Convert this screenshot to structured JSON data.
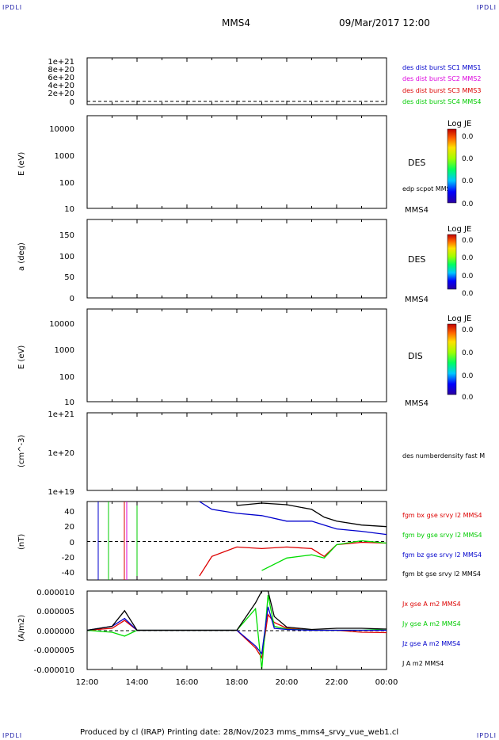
{
  "corner_tl": "IPDLI",
  "corner_tr": "IPDLI",
  "corner_bl": "IPDLI",
  "corner_br": "IPDLI",
  "header": {
    "spacecraft": "MMS4",
    "date": "09/Mar/2017 12:00"
  },
  "footer": "Produced by cl (IRAP)   Printing date: 28/Nov/2023   mms_mms4_srvy_vue_web1.cl",
  "colors": {
    "black": "#000000",
    "red": "#dd0000",
    "green": "#00dd00",
    "blue": "#0000cc",
    "magenta": "#dd00dd"
  },
  "panels": {
    "p1": {
      "ylabel": "",
      "ticks": [
        "1e+21",
        "8e+20",
        "6e+20",
        "4e+20",
        "2e+20",
        "0"
      ],
      "legend": [
        "des dist burst SC1 MMS1",
        "des dist burst SC2 MMS2",
        "des dist burst SC3 MMS3",
        "des dist burst SC4 MMS4"
      ]
    },
    "p2": {
      "ylabel": "E (eV)",
      "ticks": [
        "10000",
        "1000",
        "100",
        "10"
      ],
      "label": "DES",
      "sublabel": "edp scpot MMS4",
      "bottom": "MMS4",
      "cbar_title": "Log JE",
      "cbar_ticks": [
        "0.0",
        "0.0",
        "0.0",
        "0.0"
      ]
    },
    "p3": {
      "ylabel": "a (deg)",
      "ticks": [
        "150",
        "100",
        "50",
        "0"
      ],
      "label": "DES",
      "bottom": "MMS4",
      "cbar_title": "Log JE",
      "cbar_ticks": [
        "0.0",
        "0.0",
        "0.0",
        "0.0"
      ]
    },
    "p4": {
      "ylabel": "E (eV)",
      "ticks": [
        "10000",
        "1000",
        "100",
        "10"
      ],
      "label": "DIS",
      "bottom": "MMS4",
      "cbar_title": "Log JE",
      "cbar_ticks": [
        "0.0",
        "0.0",
        "0.0",
        "0.0"
      ]
    },
    "p5": {
      "ylabel": "(cm^-3)",
      "ticks": [
        "1e+21",
        "1e+20",
        "1e+19"
      ],
      "sublabel": "des numberdensity fast M"
    },
    "p6": {
      "ylabel": "(nT)",
      "ticks": [
        "40",
        "20",
        "0",
        "-20",
        "-40"
      ],
      "legend": [
        "fgm bx gse srvy l2 MMS4",
        "fgm by gse srvy l2 MMS4",
        "fgm bz gse srvy l2 MMS4",
        "fgm bt gse srvy l2 MMS4"
      ]
    },
    "p7": {
      "ylabel": "(A/m2)",
      "ticks": [
        "0.000010",
        "0.000005",
        "0.000000",
        "-0.000005",
        "-0.000010"
      ],
      "legend": [
        "Jx gse A m2 MMS4",
        "Jy gse A m2 MMS4",
        "Jz gse A m2 MMS4",
        "J A m2 MMS4"
      ]
    }
  },
  "xticks": [
    "12:00",
    "14:00",
    "16:00",
    "18:00",
    "20:00",
    "22:00",
    "00:00"
  ],
  "chart_data": [
    {
      "type": "line",
      "panel": "p6",
      "ylim": [
        -50,
        50
      ],
      "x": [
        "12:00",
        "14:00",
        "16:00",
        "16:30",
        "17:00",
        "18:00",
        "19:00",
        "20:00",
        "21:00",
        "21:30",
        "22:00",
        "23:00",
        "00:00"
      ],
      "series": [
        {
          "name": "fgm bx gse srvy l2 MMS4",
          "values": [
            null,
            null,
            null,
            -45,
            -20,
            -8,
            -10,
            -8,
            -10,
            -20,
            -5,
            -2,
            -3
          ]
        },
        {
          "name": "fgm by gse srvy l2 MMS4",
          "values": [
            null,
            null,
            null,
            null,
            null,
            null,
            -38,
            -22,
            -18,
            -22,
            -5,
            0,
            -3
          ]
        },
        {
          "name": "fgm bz gse srvy l2 MMS4",
          "values": [
            null,
            null,
            null,
            50,
            40,
            35,
            32,
            25,
            25,
            20,
            15,
            12,
            8
          ]
        },
        {
          "name": "fgm bt gse srvy l2 MMS4",
          "values": [
            null,
            null,
            null,
            null,
            null,
            45,
            48,
            46,
            40,
            30,
            25,
            20,
            18
          ]
        }
      ]
    },
    {
      "type": "line",
      "panel": "p7",
      "ylim": [
        -1e-05,
        1e-05
      ],
      "x": [
        "12:00",
        "13:00",
        "13:30",
        "14:00",
        "16:00",
        "18:00",
        "18:45",
        "19:00",
        "19:15",
        "19:30",
        "20:00",
        "21:00",
        "22:00",
        "23:00",
        "00:00"
      ],
      "series": [
        {
          "name": "Jx gse A m2 MMS4",
          "values": [
            0,
            5e-07,
            2.5e-06,
            0,
            0,
            0,
            -4.5e-06,
            -7e-06,
            4e-06,
            2e-06,
            5e-07,
            0,
            0,
            -5e-07,
            -6e-07
          ]
        },
        {
          "name": "Jy gse A m2 MMS4",
          "values": [
            0,
            -5e-07,
            -1.5e-06,
            0,
            0,
            0,
            5.5e-06,
            -1e-05,
            9e-06,
            1e-06,
            3e-07,
            0,
            0,
            0,
            3e-07
          ]
        },
        {
          "name": "Jz gse A m2 MMS4",
          "values": [
            0,
            1e-06,
            3e-06,
            0,
            0,
            0,
            -4e-06,
            -6e-06,
            6e-06,
            5e-07,
            2e-07,
            0,
            0,
            0,
            0
          ]
        },
        {
          "name": "J A m2 MMS4",
          "values": [
            0,
            1e-06,
            5e-06,
            0,
            0,
            0,
            7e-06,
            1.2e-05,
            1e-05,
            3.5e-06,
            8e-07,
            2e-07,
            5e-07,
            5e-07,
            3e-07
          ]
        }
      ]
    }
  ]
}
